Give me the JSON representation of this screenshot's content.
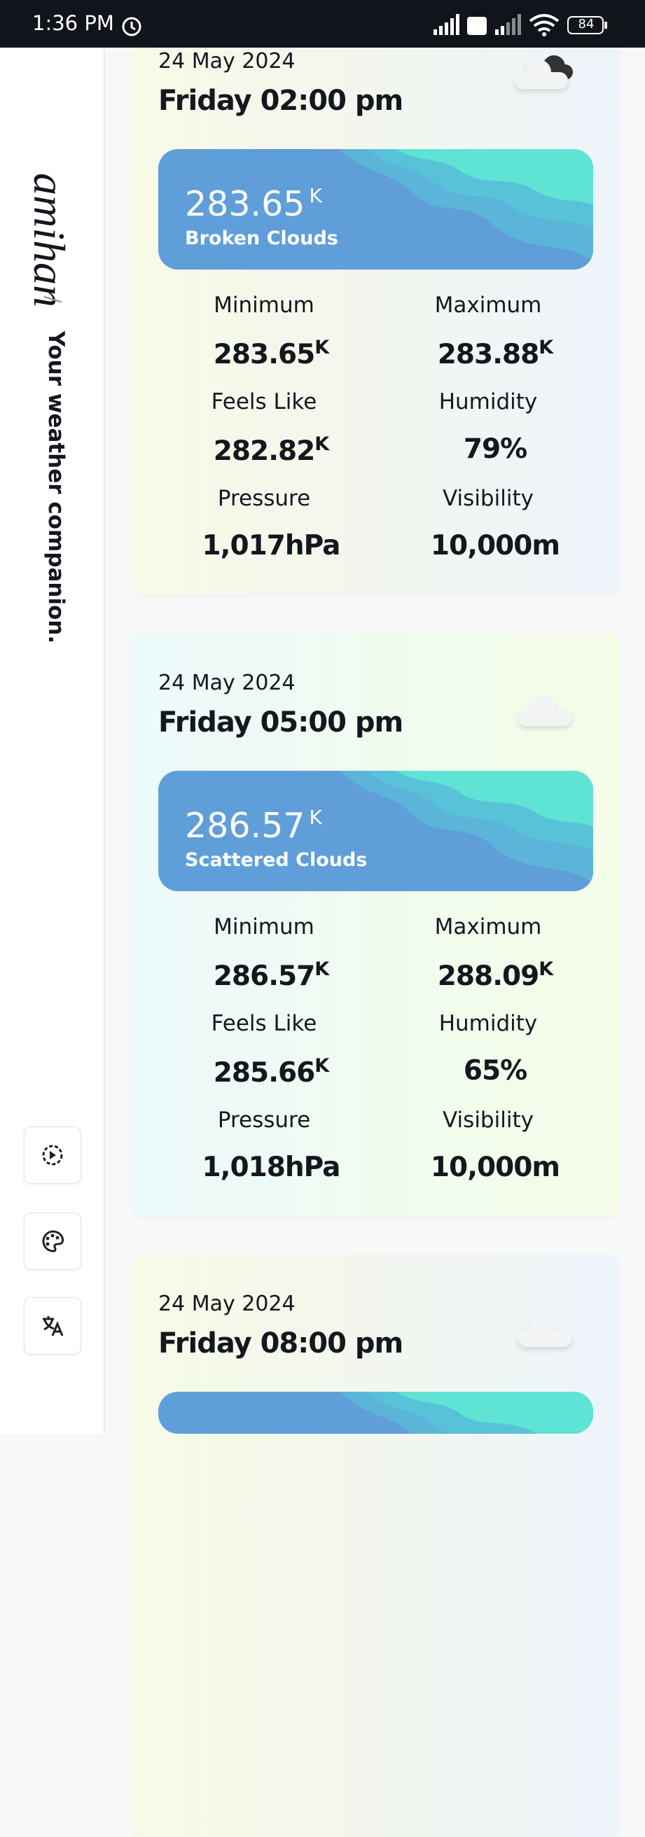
{
  "status_bar": {
    "time": "1:36 PM",
    "battery": "84"
  },
  "sidebar": {
    "logo": "amihan",
    "separator": "/",
    "tagline": "Your weather companion."
  },
  "forecasts": [
    {
      "date": "24 May 2024",
      "time": "Friday 02:00 pm",
      "temperature": "283.65",
      "temperature_unit": "K",
      "description": "Broken Clouds",
      "details": [
        {
          "label": "Minimum",
          "value": "283.65",
          "unit": "K"
        },
        {
          "label": "Maximum",
          "value": "283.88",
          "unit": "K"
        },
        {
          "label": "Feels Like",
          "value": "282.82",
          "unit": "K"
        },
        {
          "label": "Humidity",
          "value": "79%"
        },
        {
          "label": "Pressure",
          "value": "1,017hPa"
        },
        {
          "label": "Visibility",
          "value": "10,000m"
        }
      ]
    },
    {
      "date": "24 May 2024",
      "time": "Friday 05:00 pm",
      "temperature": "286.57",
      "temperature_unit": "K",
      "description": "Scattered Clouds",
      "details": [
        {
          "label": "Minimum",
          "value": "286.57",
          "unit": "K"
        },
        {
          "label": "Maximum",
          "value": "288.09",
          "unit": "K"
        },
        {
          "label": "Feels Like",
          "value": "285.66",
          "unit": "K"
        },
        {
          "label": "Humidity",
          "value": "65%"
        },
        {
          "label": "Pressure",
          "value": "1,018hPa"
        },
        {
          "label": "Visibility",
          "value": "10,000m"
        }
      ]
    },
    {
      "date": "24 May 2024",
      "time": "Friday 08:00 pm"
    }
  ]
}
